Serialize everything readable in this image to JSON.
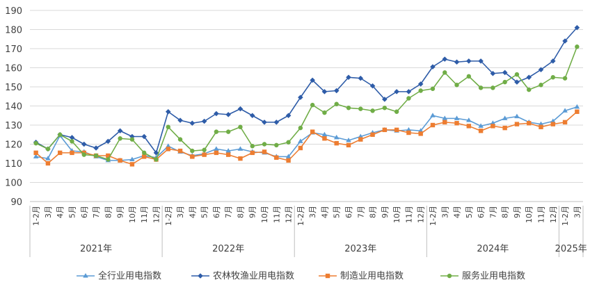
{
  "chart_data": {
    "type": "line",
    "title": "",
    "xlabel": "",
    "ylabel": "",
    "ylim": [
      90,
      190
    ],
    "yticks": [
      90,
      100,
      110,
      120,
      130,
      140,
      150,
      160,
      170,
      180,
      190
    ],
    "grid": "horizontal",
    "legend": "bottom",
    "categories": [
      "1-2月",
      "3月",
      "4月",
      "5月",
      "6月",
      "7月",
      "8月",
      "9月",
      "10月",
      "11月",
      "12月",
      "1-2月",
      "3月",
      "4月",
      "5月",
      "6月",
      "7月",
      "8月",
      "9月",
      "10月",
      "11月",
      "12月",
      "1-2月",
      "3月",
      "4月",
      "5月",
      "6月",
      "7月",
      "8月",
      "9月",
      "10月",
      "11月",
      "12月",
      "1-2月",
      "3月",
      "4月",
      "5月",
      "6月",
      "7月",
      "8月",
      "9月",
      "10月",
      "11月",
      "12月",
      "1-2月",
      "3月"
    ],
    "year_groups": [
      {
        "label": "2021年",
        "count": 11
      },
      {
        "label": "2022年",
        "count": 11
      },
      {
        "label": "2023年",
        "count": 11
      },
      {
        "label": "2024年",
        "count": 11
      },
      {
        "label": "2025年",
        "count": 2
      }
    ],
    "series": [
      {
        "name": "全行业用电指数",
        "color": "#5b9bd5",
        "marker": "triangle",
        "values": [
          113.5,
          112.5,
          124.5,
          116.5,
          116,
          113.5,
          111.5,
          111.5,
          112,
          114,
          113,
          119,
          116,
          114,
          115,
          117.5,
          116.5,
          117.5,
          116,
          115.5,
          113.5,
          113.5,
          121.5,
          126,
          125,
          123.5,
          122,
          124,
          126,
          127.5,
          127,
          127.5,
          127,
          135,
          133.5,
          133.5,
          132.5,
          129.5,
          131,
          133.5,
          134.5,
          131.5,
          130.5,
          132,
          137.5,
          139.5
        ]
      },
      {
        "name": "农林牧渔业用电指数",
        "color": "#2e5ca8",
        "marker": "diamond",
        "values": [
          121,
          117.5,
          125,
          123.5,
          120,
          118,
          121.5,
          127,
          124,
          124,
          115.5,
          137,
          132.5,
          131,
          132,
          136,
          135.5,
          138.5,
          135,
          131.5,
          131.5,
          135,
          144.5,
          153.5,
          147.5,
          148,
          155,
          154.5,
          150.5,
          143.5,
          147.5,
          147.5,
          151.5,
          160.5,
          164.5,
          163,
          163.5,
          163.5,
          157,
          157.5,
          152.5,
          155,
          159,
          163.5,
          174,
          181
        ]
      },
      {
        "name": "制造业用电指数",
        "color": "#ed7d31",
        "marker": "square",
        "values": [
          115.5,
          110,
          115.5,
          115.5,
          115.5,
          114,
          114,
          111.5,
          109.5,
          113.5,
          112,
          117.5,
          116.5,
          113.5,
          114.5,
          115.5,
          114.5,
          112.5,
          115.5,
          116,
          113,
          111.5,
          118,
          126.5,
          123,
          120.5,
          119.5,
          122.5,
          125,
          127.5,
          127.5,
          126,
          125.5,
          130,
          131.5,
          131,
          129.5,
          127,
          129.5,
          128.5,
          130.5,
          131,
          129,
          130.5,
          131.5,
          137
        ]
      },
      {
        "name": "服务业用电指数",
        "color": "#70ad47",
        "marker": "circle",
        "values": [
          120.5,
          117.5,
          125,
          121.5,
          114.5,
          114,
          112,
          123,
          122.5,
          115.5,
          112,
          129,
          122.5,
          116.5,
          117,
          126.5,
          126.5,
          129,
          119,
          120,
          119.5,
          121,
          128.5,
          140.5,
          136.5,
          141,
          139,
          138.5,
          137.5,
          139,
          137,
          144,
          148,
          149,
          157.5,
          151,
          155.5,
          149.5,
          149.5,
          152.5,
          156.5,
          148.5,
          151,
          155,
          154.5,
          171
        ]
      }
    ]
  }
}
